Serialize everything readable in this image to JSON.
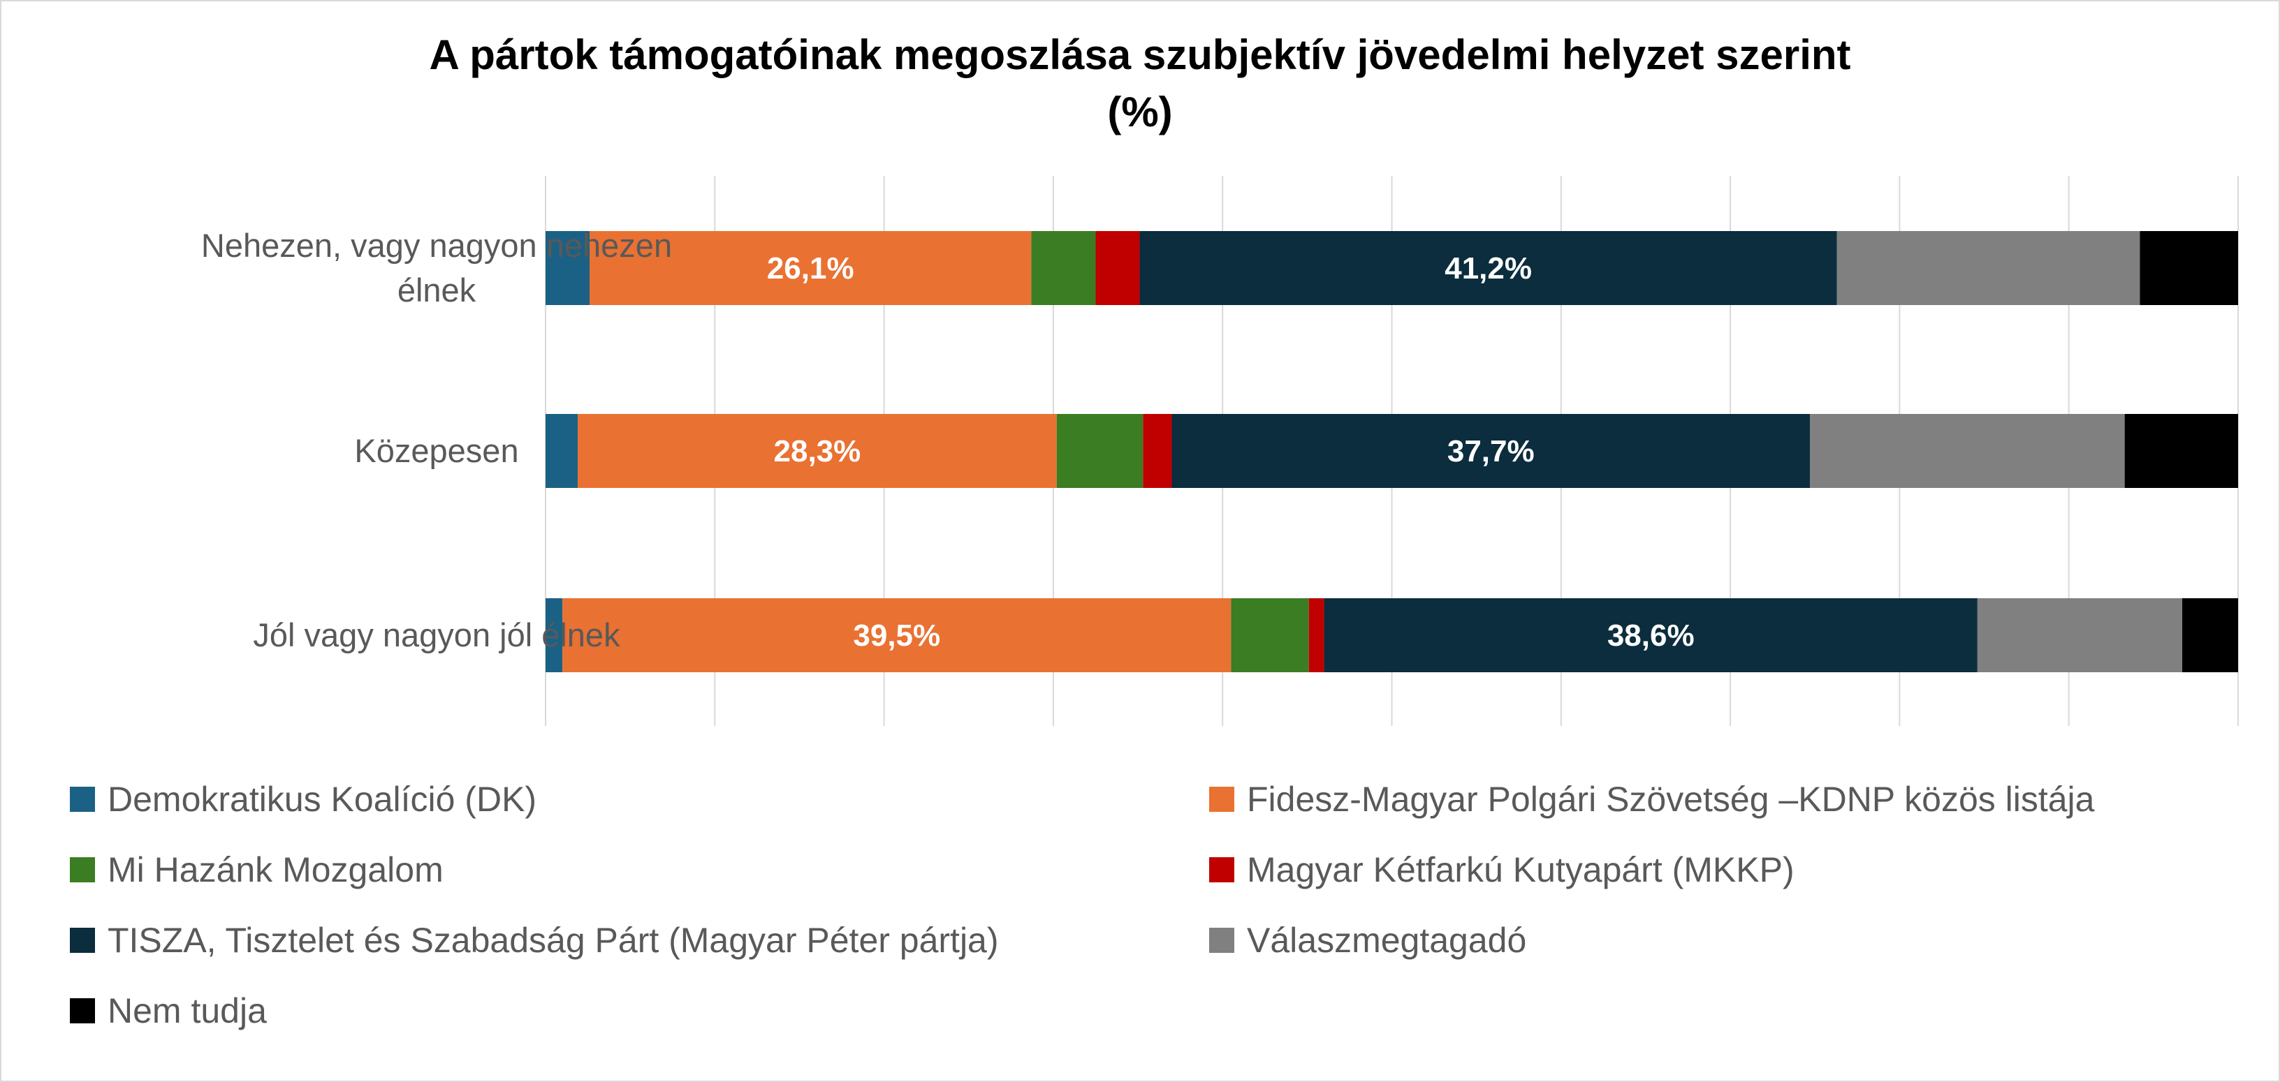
{
  "chart_data": {
    "type": "bar",
    "orientation": "horizontal",
    "stacked": true,
    "title": "A pártok támogatóinak megoszlása szubjektív jövedelmi helyzet szerint",
    "subtitle": "(%)",
    "categories": [
      "Nehezen, vagy nagyon nehezen élnek",
      "Közepesen",
      "Jól vagy nagyon jól élnek"
    ],
    "xlim": [
      0,
      100
    ],
    "grid": true,
    "legend_position": "bottom",
    "series": [
      {
        "name": "Demokratikus Koalíció (DK)",
        "color": "#1b6185",
        "values": [
          2.6,
          1.9,
          1.0
        ],
        "labels": [
          "",
          "",
          ""
        ]
      },
      {
        "name": "Fidesz-Magyar Polgári Szövetség –KDNP közös listája",
        "color": "#e97132",
        "values": [
          26.1,
          28.3,
          39.5
        ],
        "labels": [
          "26,1%",
          "28,3%",
          "39,5%"
        ]
      },
      {
        "name": "Mi Hazánk Mozgalom",
        "color": "#3b7d23",
        "values": [
          3.8,
          5.1,
          4.6
        ],
        "labels": [
          "",
          "",
          ""
        ]
      },
      {
        "name": "Magyar Kétfarkú Kutyapárt (MKKP)",
        "color": "#c00000",
        "values": [
          2.6,
          1.7,
          0.9
        ],
        "labels": [
          "",
          "",
          ""
        ]
      },
      {
        "name": "TISZA, Tisztelet és Szabadság Párt (Magyar Péter pártja)",
        "color": "#0b2d3d",
        "values": [
          41.2,
          37.7,
          38.6
        ],
        "labels": [
          "41,2%",
          "37,7%",
          "38,6%"
        ]
      },
      {
        "name": "Válaszmegtagadó",
        "color": "#808080",
        "values": [
          17.9,
          18.6,
          12.1
        ],
        "labels": [
          "",
          "",
          ""
        ]
      },
      {
        "name": "Nem tudja",
        "color": "#000000",
        "values": [
          5.8,
          6.7,
          3.3
        ],
        "labels": [
          "",
          "",
          ""
        ]
      }
    ]
  }
}
